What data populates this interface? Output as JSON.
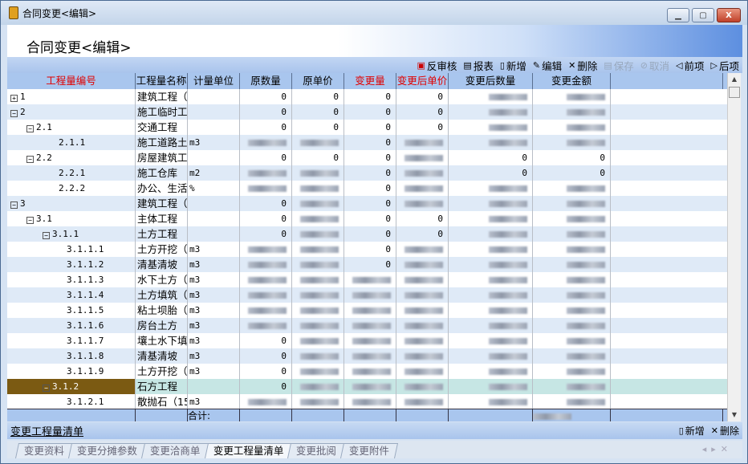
{
  "window": {
    "title": "合同变更<编辑>",
    "minimize": "▁",
    "maximize": "▢",
    "close": "X"
  },
  "banner": {
    "title": "合同变更<编辑>"
  },
  "toolbar": [
    {
      "label": "反审核",
      "icon": "unaudit-icon",
      "glyph": "▣",
      "enabled": true
    },
    {
      "label": "报表",
      "icon": "report-icon",
      "glyph": "▤",
      "enabled": true
    },
    {
      "label": "新增",
      "icon": "add-icon",
      "glyph": "▯",
      "enabled": true
    },
    {
      "label": "编辑",
      "icon": "edit-icon",
      "glyph": "✎",
      "enabled": true
    },
    {
      "label": "删除",
      "icon": "delete-icon",
      "glyph": "✕",
      "enabled": true
    },
    {
      "label": "保存",
      "icon": "save-icon",
      "glyph": "▤",
      "enabled": false
    },
    {
      "label": "取消",
      "icon": "cancel-icon",
      "glyph": "⊘",
      "enabled": false
    },
    {
      "label": "前项",
      "icon": "prev-icon",
      "glyph": "◁",
      "enabled": true
    },
    {
      "label": "后项",
      "icon": "next-icon",
      "glyph": "▷",
      "enabled": true
    }
  ],
  "table": {
    "columns": [
      {
        "label": "工程量编号",
        "highlight": true
      },
      {
        "label": "工程量名称",
        "highlight": false
      },
      {
        "label": "计量单位",
        "highlight": false
      },
      {
        "label": "原数量",
        "highlight": false
      },
      {
        "label": "原单价",
        "highlight": false
      },
      {
        "label": "变更量",
        "highlight": true
      },
      {
        "label": "变更后单价",
        "highlight": true
      },
      {
        "label": "变更后数量",
        "highlight": false
      },
      {
        "label": "变更金额",
        "highlight": false
      },
      {
        "label": "",
        "highlight": false
      }
    ],
    "rows": [
      {
        "code": "1",
        "level": 0,
        "toggle": "+",
        "name": "建筑工程（",
        "unit": "",
        "v": [
          "0",
          "0",
          "0",
          "0",
          null,
          null
        ]
      },
      {
        "code": "2",
        "level": 0,
        "toggle": "-",
        "name": "施工临时工",
        "unit": "",
        "v": [
          "0",
          "0",
          "0",
          "0",
          null,
          null
        ]
      },
      {
        "code": "2.1",
        "level": 1,
        "toggle": "-",
        "name": "交通工程",
        "unit": "",
        "v": [
          "0",
          "0",
          "0",
          "0",
          null,
          null
        ]
      },
      {
        "code": "2.1.1",
        "level": 2,
        "toggle": "",
        "name": "施工道路土",
        "unit": "m3",
        "v": [
          null,
          null,
          "0",
          null,
          null,
          null
        ]
      },
      {
        "code": "2.2",
        "level": 1,
        "toggle": "-",
        "name": "房屋建筑工",
        "unit": "",
        "v": [
          "0",
          "0",
          "0",
          null,
          "0",
          "0"
        ]
      },
      {
        "code": "2.2.1",
        "level": 2,
        "toggle": "",
        "name": "施工仓库",
        "unit": "m2",
        "v": [
          null,
          null,
          "0",
          null,
          "0",
          "0"
        ]
      },
      {
        "code": "2.2.2",
        "level": 2,
        "toggle": "",
        "name": "办公、生活",
        "unit": "%",
        "v": [
          null,
          null,
          "0",
          null,
          null,
          null
        ]
      },
      {
        "code": "3",
        "level": 0,
        "toggle": "-",
        "name": "建筑工程（",
        "unit": "",
        "v": [
          "0",
          null,
          "0",
          null,
          null,
          null
        ]
      },
      {
        "code": "3.1",
        "level": 1,
        "toggle": "-",
        "name": "主体工程",
        "unit": "",
        "v": [
          "0",
          null,
          "0",
          "0",
          null,
          null
        ]
      },
      {
        "code": "3.1.1",
        "level": 2,
        "toggle": "-",
        "name": "土方工程",
        "unit": "",
        "v": [
          "0",
          null,
          "0",
          "0",
          null,
          null
        ]
      },
      {
        "code": "3.1.1.1",
        "level": 3,
        "toggle": "",
        "name": "土方开挖（5",
        "unit": "m3",
        "v": [
          null,
          null,
          "0",
          null,
          null,
          null
        ]
      },
      {
        "code": "3.1.1.2",
        "level": 3,
        "toggle": "",
        "name": "清基清坡",
        "unit": "m3",
        "v": [
          null,
          null,
          "0",
          null,
          null,
          null
        ]
      },
      {
        "code": "3.1.1.3",
        "level": 3,
        "toggle": "",
        "name": "水下土方（5",
        "unit": "m3",
        "v": [
          null,
          null,
          null,
          null,
          null,
          null
        ]
      },
      {
        "code": "3.1.1.4",
        "level": 3,
        "toggle": "",
        "name": "土方填筑（5",
        "unit": "m3",
        "v": [
          null,
          null,
          null,
          null,
          null,
          null
        ]
      },
      {
        "code": "3.1.1.5",
        "level": 3,
        "toggle": "",
        "name": "粘土坝胎（5",
        "unit": "m3",
        "v": [
          null,
          null,
          null,
          null,
          null,
          null
        ]
      },
      {
        "code": "3.1.1.6",
        "level": 3,
        "toggle": "",
        "name": "房台土方",
        "unit": "m3",
        "v": [
          null,
          null,
          null,
          null,
          null,
          null
        ]
      },
      {
        "code": "3.1.1.7",
        "level": 3,
        "toggle": "",
        "name": "壤土水下填",
        "unit": "m3",
        "v": [
          "0",
          null,
          null,
          null,
          null,
          null
        ]
      },
      {
        "code": "3.1.1.8",
        "level": 3,
        "toggle": "",
        "name": "清基清坡",
        "unit": "m3",
        "v": [
          "0",
          null,
          null,
          null,
          null,
          null
        ]
      },
      {
        "code": "3.1.1.9",
        "level": 3,
        "toggle": "",
        "name": "土方开挖（5",
        "unit": "m3",
        "v": [
          "0",
          null,
          null,
          null,
          null,
          null
        ]
      },
      {
        "code": "3.1.2",
        "level": 2,
        "toggle": "-",
        "name": "石方工程",
        "unit": "",
        "v": [
          "0",
          null,
          null,
          null,
          null,
          null
        ],
        "selected": true
      },
      {
        "code": "3.1.2.1",
        "level": 3,
        "toggle": "",
        "name": "散抛石（15",
        "unit": "m3",
        "v": [
          null,
          null,
          null,
          null,
          null,
          null
        ]
      }
    ],
    "total_label": "合计:"
  },
  "subsection": {
    "title": "变更工程量清单",
    "add": "新增",
    "delete": "删除"
  },
  "tabs": [
    {
      "label": "变更资料",
      "active": false
    },
    {
      "label": "变更分摊参数",
      "active": false
    },
    {
      "label": "变更洽商单",
      "active": false
    },
    {
      "label": "变更工程量清单",
      "active": true
    },
    {
      "label": "变更批阅",
      "active": false
    },
    {
      "label": "变更附件",
      "active": false
    }
  ],
  "colors": {
    "header_bg": "#a9c6ee",
    "alt_row": "#dfeaf7",
    "selected_code": "#7b5a12",
    "selected_row": "#c6e6e4",
    "highlight_text": "#e00000"
  }
}
